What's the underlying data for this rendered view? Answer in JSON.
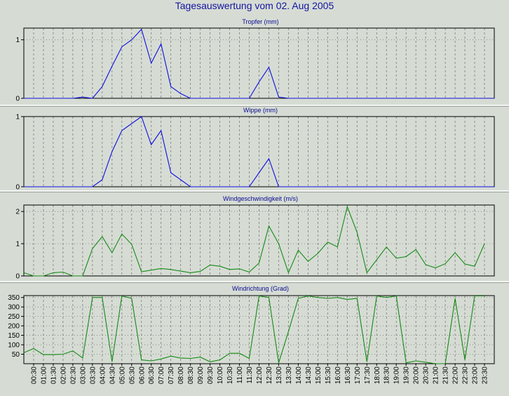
{
  "title": "Tagesauswertung vom 02. Aug 2005",
  "colors": {
    "background": "#d6dcd4",
    "plot_background": "#d6dcd4",
    "grid": "#7a7a7a",
    "title_text": "#1414a0",
    "panel_title": "#0a0a90",
    "rain_line": "#1010e0",
    "wind_line": "#158a15",
    "separator": "#ffffff"
  },
  "time_labels": [
    "00:30",
    "01:00",
    "01:30",
    "02:00",
    "02:30",
    "03:00",
    "03:30",
    "04:00",
    "04:30",
    "05:00",
    "05:30",
    "06:00",
    "06:30",
    "07:00",
    "07:30",
    "08:00",
    "08:30",
    "09:00",
    "09:30",
    "10:00",
    "10:30",
    "11:00",
    "11:30",
    "12:00",
    "12:30",
    "13:00",
    "13:30",
    "14:00",
    "14:30",
    "15:00",
    "15:30",
    "16:00",
    "16:30",
    "17:00",
    "17:30",
    "18:00",
    "18:30",
    "19:00",
    "19:30",
    "20:00",
    "20:30",
    "21:00",
    "21:30",
    "22:00",
    "22:30",
    "23:00",
    "23:30"
  ],
  "chart_data": [
    {
      "type": "line",
      "title": "Tropfer (mm)",
      "x_unit": "hours",
      "ylim": [
        0,
        1.2
      ],
      "yticks": [
        "0",
        "1"
      ],
      "ytick_values": [
        0,
        1
      ],
      "grid": true,
      "series": [
        {
          "x": [
            0,
            0.5,
            1,
            1.5,
            2,
            2.5,
            3,
            3.5,
            4,
            4.5,
            5,
            5.5,
            6,
            6.5,
            7,
            7.5,
            8,
            8.5,
            9,
            9.5,
            10,
            10.5,
            11,
            11.5,
            12,
            12.5,
            13,
            13.5,
            24
          ],
          "y": [
            0,
            0,
            0,
            0,
            0,
            0,
            0.02,
            0,
            0.2,
            0.55,
            0.88,
            1.0,
            1.18,
            0.6,
            0.93,
            0.2,
            0.08,
            0,
            0,
            0,
            0,
            0,
            0,
            0,
            0.28,
            0.53,
            0.02,
            0,
            0
          ]
        }
      ]
    },
    {
      "type": "line",
      "title": "Wippe (mm)",
      "x_unit": "hours",
      "ylim": [
        0,
        1.0
      ],
      "yticks": [
        "0",
        "1"
      ],
      "ytick_values": [
        0,
        1
      ],
      "grid": true,
      "series": [
        {
          "x": [
            0,
            0.5,
            1,
            1.5,
            2,
            2.5,
            3,
            3.5,
            4,
            4.5,
            5,
            5.5,
            6,
            6.5,
            7,
            7.5,
            8,
            8.5,
            9,
            9.5,
            10,
            10.5,
            11,
            11.5,
            12,
            12.5,
            13,
            13.5,
            24
          ],
          "y": [
            0,
            0,
            0,
            0,
            0,
            0,
            0,
            0,
            0.1,
            0.5,
            0.8,
            0.9,
            1.0,
            0.6,
            0.8,
            0.2,
            0.1,
            0,
            0,
            0,
            0,
            0,
            0,
            0,
            0.2,
            0.4,
            0,
            0,
            0
          ]
        }
      ]
    },
    {
      "type": "line",
      "title": "Windgeschwindigkeit (m/s)",
      "x_unit": "hours",
      "ylim": [
        0,
        2.2
      ],
      "yticks": [
        "0",
        "1",
        "2"
      ],
      "ytick_values": [
        0,
        1,
        2
      ],
      "grid": true,
      "series": [
        {
          "x": [
            0,
            0.5,
            1,
            1.5,
            2,
            2.5,
            3,
            3.5,
            4,
            4.5,
            5,
            5.5,
            6,
            6.5,
            7,
            7.5,
            8,
            8.5,
            9,
            9.5,
            10,
            10.5,
            11,
            11.5,
            12,
            12.5,
            13,
            13.5,
            14,
            14.5,
            15,
            15.5,
            16,
            16.5,
            17,
            17.5,
            18,
            18.5,
            19,
            19.5,
            20,
            20.5,
            21,
            21.5,
            22,
            22.5,
            23,
            23.5
          ],
          "y": [
            0.1,
            0,
            0,
            0.1,
            0.12,
            0,
            0,
            0.85,
            1.22,
            0.72,
            1.3,
            0.98,
            0.13,
            0.18,
            0.23,
            0.2,
            0.15,
            0.1,
            0.14,
            0.34,
            0.3,
            0.2,
            0.22,
            0.12,
            0.4,
            1.55,
            1.0,
            0.1,
            0.8,
            0.45,
            0.7,
            1.05,
            0.9,
            2.15,
            1.35,
            0.1,
            0.5,
            0.9,
            0.55,
            0.6,
            0.82,
            0.35,
            0.25,
            0.38,
            0.72,
            0.37,
            0.3,
            1.0
          ]
        }
      ]
    },
    {
      "type": "line",
      "title": "Windrichtung (Grad)",
      "x_unit": "hours",
      "ylim": [
        0,
        360
      ],
      "yticks": [
        "50",
        "100",
        "150",
        "200",
        "250",
        "300",
        "350"
      ],
      "ytick_values": [
        50,
        100,
        150,
        200,
        250,
        300,
        350
      ],
      "grid": true,
      "series": [
        {
          "x": [
            0,
            0.5,
            1,
            1.5,
            2,
            2.5,
            3,
            3.5,
            4,
            4.5,
            5,
            5.5,
            6,
            6.5,
            7,
            7.5,
            8,
            8.5,
            9,
            9.5,
            10,
            10.5,
            11,
            11.5,
            12,
            12.5,
            13,
            13.5,
            14,
            14.5,
            15,
            15.5,
            16,
            16.5,
            17,
            17.5,
            18,
            18.5,
            19,
            19.5,
            20,
            20.5,
            21,
            21.5,
            22,
            22.5,
            23,
            23.5
          ],
          "y": [
            58,
            80,
            48,
            48,
            50,
            68,
            30,
            350,
            350,
            10,
            358,
            345,
            20,
            15,
            25,
            40,
            30,
            28,
            35,
            10,
            20,
            55,
            55,
            28,
            358,
            350,
            5,
            170,
            345,
            358,
            350,
            345,
            350,
            340,
            345,
            10,
            358,
            350,
            358,
            5,
            15,
            8,
            0,
            0,
            345,
            20,
            358,
            358
          ]
        }
      ]
    }
  ]
}
